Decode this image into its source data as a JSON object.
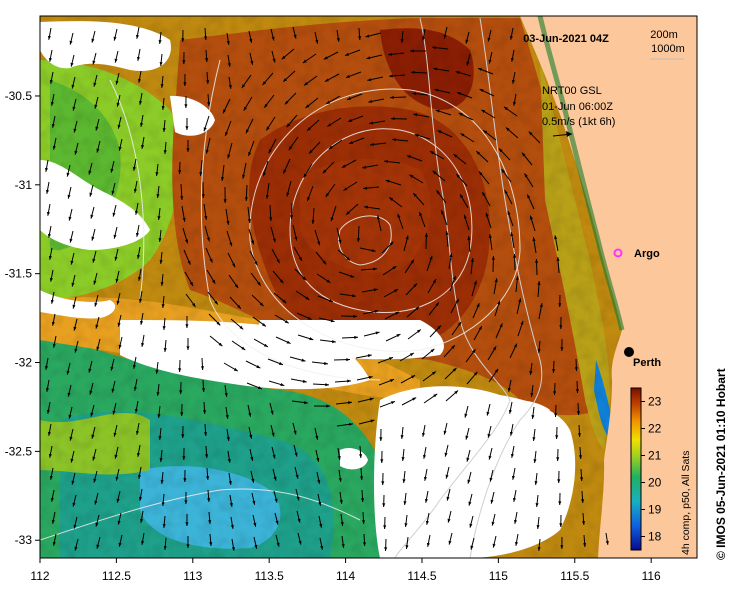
{
  "map": {
    "date_label": "03-Jun-2021 04Z",
    "isobath_labels": [
      "200m",
      "1000m"
    ],
    "current_source": [
      "NRT00 GSL",
      "01-Jun 06:00Z",
      "0.5m/s (1kt 6h)"
    ],
    "lon_ticks": [
      "112",
      "112.5",
      "113",
      "113.5",
      "114",
      "114.5",
      "115",
      "115.5",
      "116"
    ],
    "lat_ticks": [
      "-30.5",
      "-31",
      "-31.5",
      "-32",
      "-32.5",
      "-33"
    ],
    "markers": [
      {
        "name": "Argo",
        "lon": 115.75,
        "lat": -31.43,
        "color": "#ff33ff"
      },
      {
        "name": "Perth",
        "lon": 115.86,
        "lat": -31.95,
        "color": "#000000"
      }
    ],
    "extent": {
      "lon_min": 112,
      "lon_max": 116.3,
      "lat_min": -33.1,
      "lat_max": -30.05
    },
    "colors": {
      "land": "#fcc89b",
      "cloud": "#ffffff",
      "warm_core": "#7a1800",
      "cool_water": "#1ca86c"
    }
  },
  "colorbar": {
    "ticks": [
      "23",
      "22",
      "21",
      "20",
      "19",
      "18"
    ],
    "title": "4h comp, p50, All Sats",
    "range": [
      17.5,
      23.5
    ]
  },
  "credit": "© IMOS 05-Jun-2021 01:10 Hobart"
}
